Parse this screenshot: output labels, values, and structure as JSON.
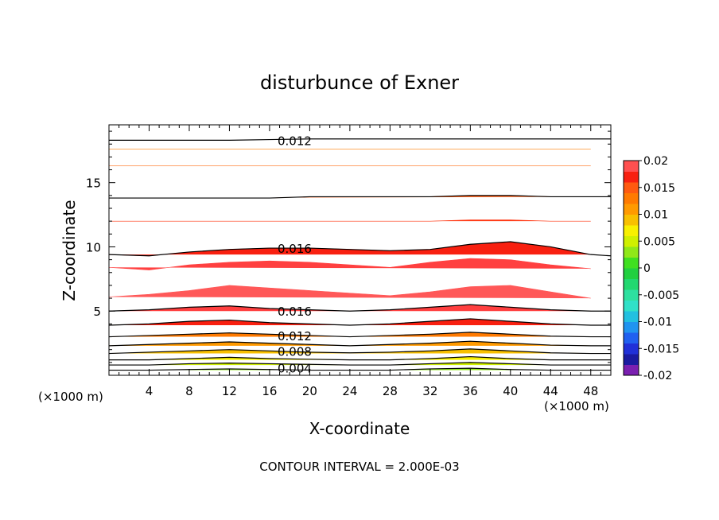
{
  "chart_data": {
    "type": "heatmap",
    "title": "disturbunce of Exner",
    "xlabel": "X-coordinate",
    "ylabel": "Z-coordinate",
    "x_unit": "(×1000 m)",
    "x_unit_right": "(×1000 m)",
    "footer": "CONTOUR INTERVAL = 2.000E-03",
    "xlim": [
      0,
      50
    ],
    "ylim": [
      0,
      19.5
    ],
    "x_ticks": [
      4,
      8,
      12,
      16,
      20,
      24,
      28,
      32,
      36,
      40,
      44,
      48
    ],
    "y_ticks": [
      5,
      10,
      15
    ],
    "colorbar": {
      "range": [
        -0.02,
        0.02
      ],
      "labels": [
        "0.02",
        "0.015",
        "0.01",
        "0.005",
        "0",
        "-0.005",
        "-0.01",
        "-0.015",
        "-0.02"
      ],
      "levels": [
        -0.02,
        -0.018,
        -0.016,
        -0.014,
        -0.012,
        -0.01,
        -0.008,
        -0.006,
        -0.004,
        -0.002,
        0,
        0.002,
        0.004,
        0.006,
        0.008,
        0.01,
        0.012,
        0.014,
        0.016,
        0.018,
        0.02
      ],
      "colors": [
        "#7a1fb0",
        "#1a1aa0",
        "#2030d8",
        "#2060f0",
        "#2094f0",
        "#22c0e0",
        "#30e0c8",
        "#2ee0a0",
        "#22d870",
        "#22d040",
        "#40e020",
        "#90e818",
        "#d0f000",
        "#f8f000",
        "#f8c000",
        "#ff9a00",
        "#ff7a00",
        "#ff5a10",
        "#f82010",
        "#ff5050"
      ]
    },
    "contour_labels": [
      {
        "text": "0.012",
        "x": 18.5,
        "z": 18.3
      },
      {
        "text": "0.016",
        "x": 18.5,
        "z": 9.9
      },
      {
        "text": "0.016",
        "x": 18.5,
        "z": 5.0
      },
      {
        "text": "0.012",
        "x": 18.5,
        "z": 3.1
      },
      {
        "text": "0.008",
        "x": 18.5,
        "z": 1.9
      },
      {
        "text": "0.004",
        "x": 18.5,
        "z": 0.6
      }
    ],
    "bands": [
      {
        "value": 0.002,
        "color": "#40e020",
        "z": [
          0.0,
          0.4,
          0.4,
          0.45,
          0.5,
          0.45,
          0.4,
          0.4,
          0.4,
          0.5,
          0.55,
          0.45,
          0.4,
          0.4
        ]
      },
      {
        "value": 0.004,
        "color": "#90e818",
        "z": [
          0.4,
          0.8,
          0.8,
          0.9,
          0.95,
          0.9,
          0.85,
          0.8,
          0.8,
          0.9,
          1.0,
          0.9,
          0.8,
          0.8
        ]
      },
      {
        "value": 0.006,
        "color": "#d0f000",
        "z": [
          0.8,
          1.2,
          1.2,
          1.3,
          1.4,
          1.3,
          1.25,
          1.2,
          1.2,
          1.3,
          1.45,
          1.3,
          1.2,
          1.2
        ]
      },
      {
        "value": 0.008,
        "color": "#f8f000",
        "z": [
          1.2,
          1.7,
          1.8,
          1.9,
          2.0,
          1.9,
          1.8,
          1.75,
          1.8,
          1.9,
          2.05,
          1.9,
          1.75,
          1.7
        ]
      },
      {
        "value": 0.01,
        "color": "#f8c000",
        "z": [
          1.7,
          2.3,
          2.4,
          2.5,
          2.6,
          2.5,
          2.4,
          2.3,
          2.4,
          2.5,
          2.65,
          2.5,
          2.35,
          2.3
        ]
      },
      {
        "value": 0.012,
        "color": "#ff9a00",
        "z": [
          2.3,
          3.0,
          3.1,
          3.2,
          3.3,
          3.2,
          3.1,
          3.0,
          3.1,
          3.2,
          3.35,
          3.2,
          3.05,
          3.0
        ]
      },
      {
        "value": 0.014,
        "color": "#ff7a00",
        "z": [
          3.0,
          3.9,
          4.0,
          4.2,
          4.3,
          4.1,
          4.0,
          3.9,
          4.0,
          4.2,
          4.4,
          4.2,
          4.0,
          3.9
        ]
      },
      {
        "value": 0.016,
        "color": "#f82010",
        "z": [
          3.9,
          5.0,
          5.1,
          5.3,
          5.4,
          5.2,
          5.1,
          5.0,
          5.1,
          5.3,
          5.5,
          5.3,
          5.1,
          5.0
        ]
      },
      {
        "value": 0.018,
        "color": "#ff4040",
        "z": [
          5.0,
          6.1,
          6.3,
          6.6,
          7.0,
          6.8,
          6.6,
          6.4,
          6.2,
          6.5,
          6.9,
          7.0,
          6.5,
          6.0
        ]
      },
      {
        "value": 0.02,
        "color": "#ff5858",
        "z": [
          6.1,
          8.4,
          8.2,
          8.6,
          8.8,
          8.9,
          8.8,
          8.6,
          8.4,
          8.8,
          9.1,
          9.0,
          8.6,
          8.3
        ]
      },
      {
        "value": 0.018,
        "color": "#ff4040",
        "z": [
          8.4,
          9.4,
          9.3,
          9.6,
          9.8,
          9.9,
          9.9,
          9.8,
          9.7,
          9.8,
          10.2,
          10.4,
          10.0,
          9.4
        ]
      },
      {
        "value": 0.016,
        "color": "#f82010",
        "z": [
          9.4,
          12.0,
          12.0,
          12.0,
          12.0,
          12.0,
          12.0,
          12.0,
          12.0,
          12.0,
          12.1,
          12.1,
          12.0,
          12.0
        ]
      },
      {
        "value": 0.014,
        "color": "#ff3510",
        "z": [
          12.0,
          13.8,
          13.8,
          13.8,
          13.8,
          13.8,
          13.9,
          13.9,
          13.9,
          13.9,
          14.0,
          14.0,
          13.9,
          13.9
        ]
      },
      {
        "value": 0.012,
        "color": "#ff5a10",
        "z": [
          13.8,
          16.3,
          16.3,
          16.3,
          16.3,
          16.3,
          16.3,
          16.3,
          16.3,
          16.3,
          16.3,
          16.3,
          16.3,
          16.3
        ]
      },
      {
        "value": 0.012,
        "color": "#ff6a10",
        "z": [
          16.3,
          17.6,
          17.6,
          17.6,
          17.6,
          17.6,
          17.6,
          17.6,
          17.6,
          17.6,
          17.6,
          17.6,
          17.6,
          17.6
        ]
      },
      {
        "value": 0.01,
        "color": "#ff7a00",
        "z": [
          17.6,
          19.5,
          19.5,
          19.5,
          19.5,
          19.5,
          19.5,
          19.5,
          19.5,
          19.5,
          19.5,
          19.5,
          19.5,
          19.5
        ]
      }
    ],
    "band_x": [
      0,
      4,
      8,
      12,
      16,
      20,
      24,
      28,
      32,
      36,
      40,
      44,
      48,
      50
    ],
    "contours": [
      {
        "z": [
          0.4,
          0.4,
          0.45,
          0.5,
          0.45,
          0.4,
          0.4,
          0.4,
          0.5,
          0.55,
          0.45,
          0.4,
          0.4,
          0.4
        ]
      },
      {
        "z": [
          0.8,
          0.8,
          0.9,
          0.95,
          0.9,
          0.85,
          0.8,
          0.8,
          0.9,
          1.0,
          0.9,
          0.8,
          0.8,
          0.8
        ]
      },
      {
        "z": [
          1.2,
          1.2,
          1.3,
          1.4,
          1.3,
          1.25,
          1.2,
          1.2,
          1.3,
          1.45,
          1.3,
          1.2,
          1.2,
          1.2
        ]
      },
      {
        "z": [
          1.7,
          1.8,
          1.9,
          2.0,
          1.9,
          1.8,
          1.75,
          1.8,
          1.9,
          2.05,
          1.9,
          1.75,
          1.7,
          1.7
        ]
      },
      {
        "z": [
          2.3,
          2.4,
          2.5,
          2.6,
          2.5,
          2.4,
          2.3,
          2.4,
          2.5,
          2.65,
          2.5,
          2.35,
          2.3,
          2.3
        ]
      },
      {
        "z": [
          3.0,
          3.1,
          3.2,
          3.3,
          3.2,
          3.1,
          3.0,
          3.1,
          3.2,
          3.35,
          3.2,
          3.05,
          3.0,
          3.0
        ]
      },
      {
        "z": [
          3.9,
          4.0,
          4.2,
          4.3,
          4.1,
          4.0,
          3.9,
          4.0,
          4.2,
          4.4,
          4.2,
          4.0,
          3.9,
          3.9
        ]
      },
      {
        "z": [
          5.0,
          5.1,
          5.3,
          5.4,
          5.2,
          5.1,
          5.0,
          5.1,
          5.3,
          5.5,
          5.3,
          5.1,
          5.0,
          5.0
        ]
      },
      {
        "z": [
          9.4,
          9.3,
          9.6,
          9.8,
          9.9,
          9.9,
          9.8,
          9.7,
          9.8,
          10.2,
          10.4,
          10.0,
          9.4,
          9.3
        ]
      },
      {
        "z": [
          13.8,
          13.8,
          13.8,
          13.8,
          13.8,
          13.9,
          13.9,
          13.9,
          13.9,
          14.0,
          14.0,
          13.9,
          13.9,
          13.9
        ]
      },
      {
        "z": [
          18.3,
          18.3,
          18.3,
          18.3,
          18.35,
          18.4,
          18.4,
          18.4,
          18.4,
          18.4,
          18.4,
          18.4,
          18.4,
          18.4
        ]
      }
    ]
  }
}
